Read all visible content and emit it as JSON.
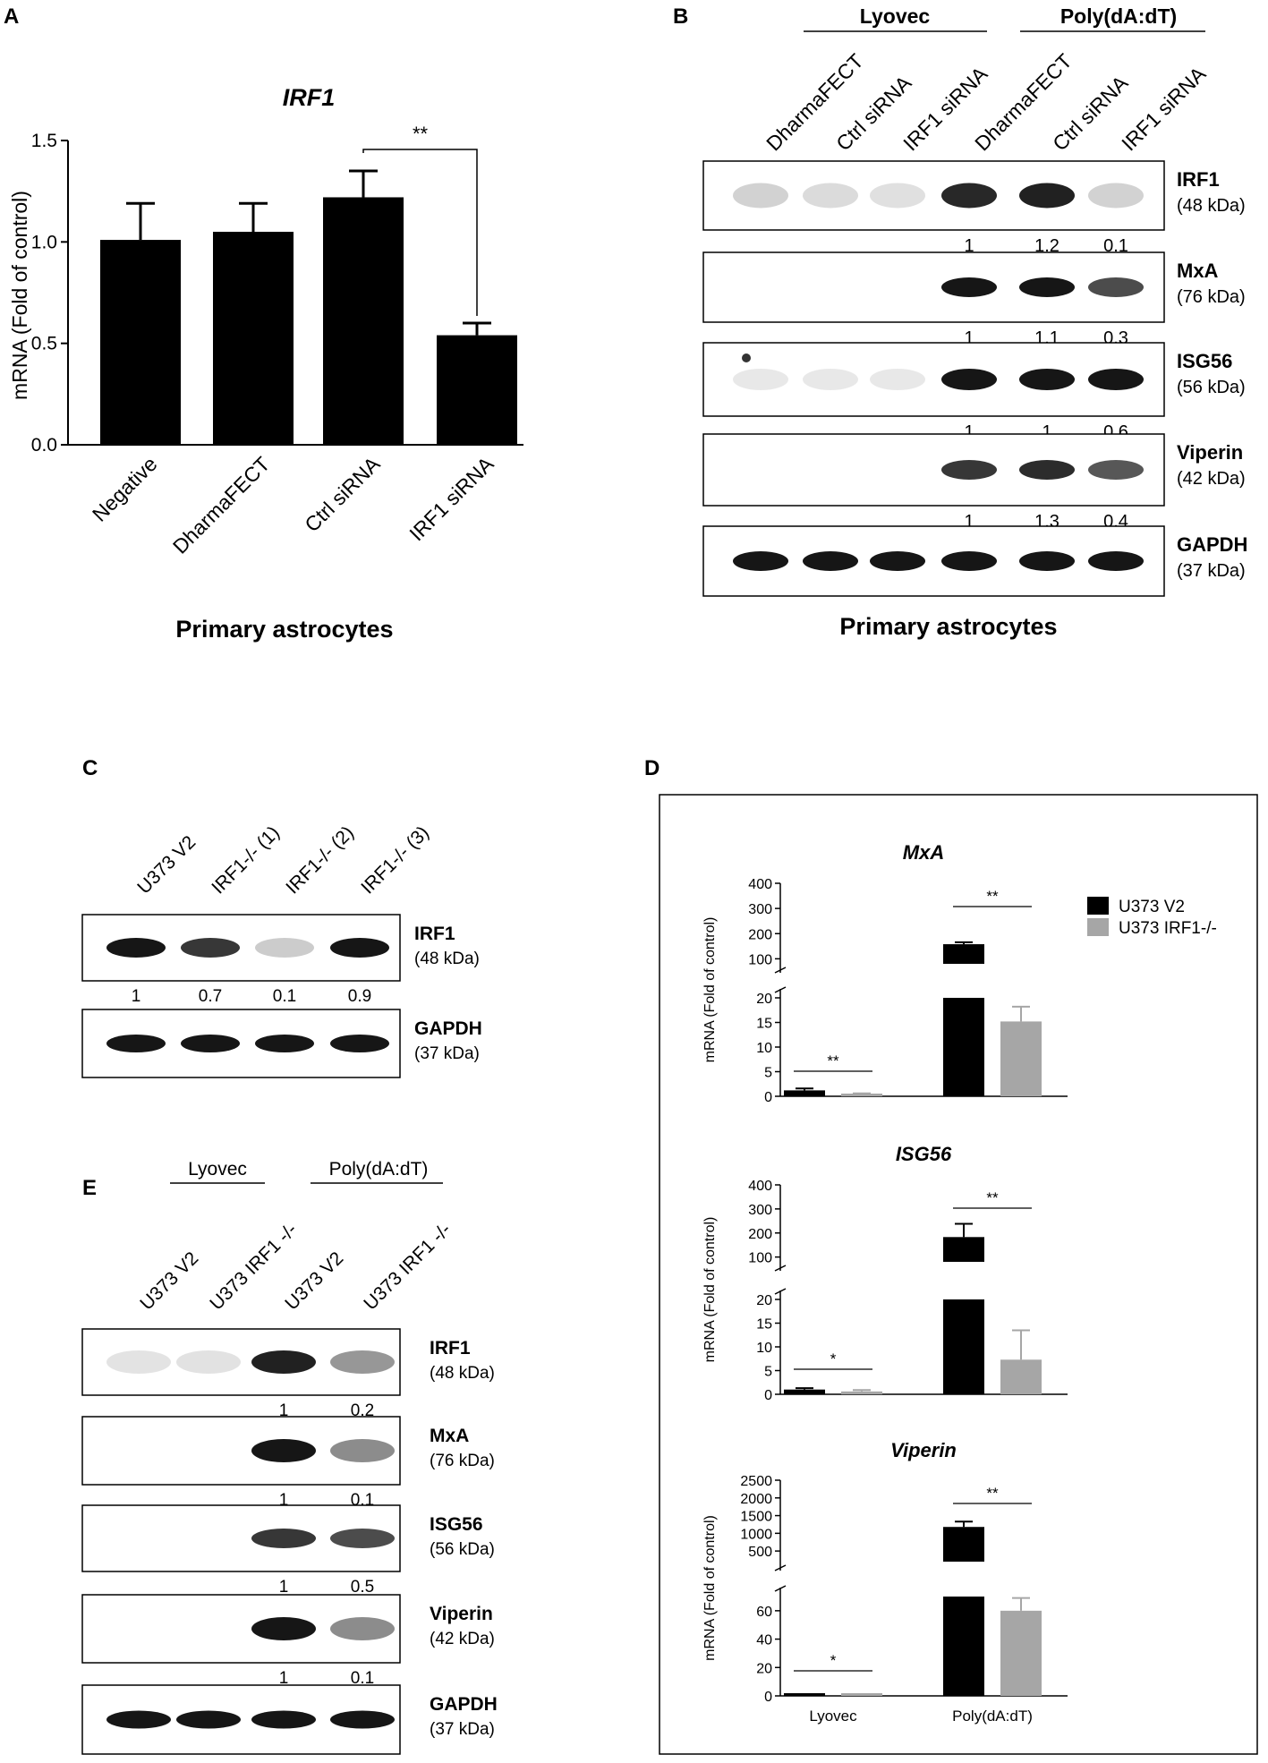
{
  "panel_a": {
    "letter": "A",
    "caption": "Primary astrocytes"
  },
  "panel_b": {
    "letter": "B",
    "group_labels": [
      "Lyovec",
      "Poly(dA:dT)"
    ],
    "lane_labels": [
      "DharmaFECT",
      "Ctrl siRNA",
      "IRF1 siRNA",
      "DharmaFECT",
      "Ctrl siRNA",
      "IRF1 siRNA"
    ],
    "blots": [
      {
        "protein": "IRF1",
        "kda": "(48 kDa)",
        "quant": [
          "1",
          "1.2",
          "0.1"
        ],
        "intensity": [
          0.12,
          0.08,
          0.06,
          0.92,
          0.95,
          0.12
        ]
      },
      {
        "protein": "MxA",
        "kda": "(76 kDa)",
        "quant": [
          "1",
          "1.1",
          "0.3"
        ],
        "intensity": [
          0,
          0,
          0,
          1,
          1,
          0.75
        ]
      },
      {
        "protein": "ISG56",
        "kda": "(56 kDa)",
        "quant": [
          "1",
          "1",
          "0.6"
        ],
        "intensity": [
          0.02,
          0.02,
          0.02,
          1,
          1,
          1
        ]
      },
      {
        "protein": "Viperin",
        "kda": "(42 kDa)",
        "quant": [
          "1",
          "1.3",
          "0.4"
        ],
        "intensity": [
          0,
          0,
          0,
          0.85,
          0.9,
          0.7
        ]
      },
      {
        "protein": "GAPDH",
        "kda": "(37 kDa)",
        "quant": [],
        "intensity": [
          1,
          1,
          1,
          1,
          1,
          1
        ]
      }
    ],
    "caption": "Primary astrocytes"
  },
  "panel_c": {
    "letter": "C",
    "lane_labels": [
      "U373 V2",
      "IRF1-/- (1)",
      "IRF1-/- (2)",
      "IRF1-/- (3)"
    ],
    "blots": [
      {
        "protein": "IRF1",
        "kda": "(48 kDa)",
        "quant": [
          "1",
          "0.7",
          "0.1",
          "0.9"
        ],
        "intensity": [
          1,
          0.85,
          0.15,
          1
        ]
      },
      {
        "protein": "GAPDH",
        "kda": "(37 kDa)",
        "quant": [],
        "intensity": [
          1,
          1,
          1,
          1
        ]
      }
    ]
  },
  "panel_d": {
    "letter": "D",
    "legend": [
      {
        "name": "U373 V2",
        "color": "#000000"
      },
      {
        "name": "U373 IRF1-/-",
        "color": "#a6a6a6"
      }
    ],
    "ylabel": "mRNA (Fold of control)",
    "categories": [
      "Lyovec",
      "Poly(dA:dT)"
    ]
  },
  "panel_e": {
    "letter": "E",
    "group_labels": [
      "Lyovec",
      "Poly(dA:dT)"
    ],
    "lane_labels": [
      "U373 V2",
      "U373 IRF1 -/-",
      "U373 V2",
      "U373 IRF1 -/-"
    ],
    "blots": [
      {
        "protein": "IRF1",
        "kda": "(48 kDa)",
        "quant": [
          "1",
          "0.2"
        ],
        "intensity": [
          0.04,
          0.05,
          0.95,
          0.4
        ]
      },
      {
        "protein": "MxA",
        "kda": "(76 kDa)",
        "quant": [
          "1",
          "0.1"
        ],
        "intensity": [
          0,
          0,
          1,
          0.45
        ]
      },
      {
        "protein": "ISG56",
        "kda": "(56 kDa)",
        "quant": [
          "1",
          "0.5"
        ],
        "intensity": [
          0,
          0,
          0.85,
          0.75
        ]
      },
      {
        "protein": "Viperin",
        "kda": "(42 kDa)",
        "quant": [
          "1",
          "0.1"
        ],
        "intensity": [
          0,
          0,
          1,
          0.45
        ]
      },
      {
        "protein": "GAPDH",
        "kda": "(37 kDa)",
        "quant": [],
        "intensity": [
          1,
          1,
          1,
          1
        ]
      }
    ]
  },
  "chart_data": [
    {
      "type": "bar",
      "title": "IRF1",
      "ylabel": "mRNA (Fold of control)",
      "xlabel": "",
      "categories": [
        "Negative",
        "DharmaFECT",
        "Ctrl siRNA",
        "IRF1 siRNA"
      ],
      "values": [
        1.01,
        1.05,
        1.22,
        0.54
      ],
      "errors": [
        0.18,
        0.14,
        0.13,
        0.06
      ],
      "ylim": [
        0,
        1.5
      ],
      "yticks": [
        "0.0",
        "0.5",
        "1.0",
        "1.5"
      ],
      "significance": [
        {
          "from": "Ctrl siRNA",
          "to": "IRF1 siRNA",
          "label": "**"
        }
      ]
    },
    {
      "type": "bar",
      "title": "MxA",
      "ylabel": "mRNA (Fold of control)",
      "categories": [
        "Lyovec",
        "Poly(dA:dT)"
      ],
      "series": [
        {
          "name": "U373 V2",
          "values": [
            1.2,
            158
          ],
          "errors": [
            0.4,
            8
          ]
        },
        {
          "name": "U373 IRF1-/-",
          "values": [
            0.5,
            15.2
          ],
          "errors": [
            0.1,
            3.0
          ]
        }
      ],
      "axis_break": {
        "lower": [
          0,
          20
        ],
        "upper": [
          0,
          400
        ]
      },
      "yticks_lower": [
        "0",
        "5",
        "10",
        "15",
        "20"
      ],
      "yticks_upper": [
        "100",
        "200",
        "300",
        "400"
      ],
      "significance": [
        "**",
        "**"
      ]
    },
    {
      "type": "bar",
      "title": "ISG56",
      "ylabel": "mRNA (Fold of control)",
      "categories": [
        "Lyovec",
        "Poly(dA:dT)"
      ],
      "series": [
        {
          "name": "U373 V2",
          "values": [
            1.0,
            183
          ],
          "errors": [
            0.3,
            55
          ]
        },
        {
          "name": "U373 IRF1-/-",
          "values": [
            0.6,
            7.3
          ],
          "errors": [
            0.3,
            6.2
          ]
        }
      ],
      "axis_break": {
        "lower": [
          0,
          20
        ],
        "upper": [
          0,
          400
        ]
      },
      "yticks_lower": [
        "0",
        "5",
        "10",
        "15",
        "20"
      ],
      "yticks_upper": [
        "100",
        "200",
        "300",
        "400"
      ],
      "significance": [
        "*",
        "**"
      ]
    },
    {
      "type": "bar",
      "title": "Viperin",
      "ylabel": "mRNA (Fold of control)",
      "categories": [
        "Lyovec",
        "Poly(dA:dT)"
      ],
      "series": [
        {
          "name": "U373 V2",
          "values": [
            1.0,
            1180
          ],
          "errors": [
            0.3,
            150
          ]
        },
        {
          "name": "U373 IRF1-/-",
          "values": [
            0.6,
            60
          ],
          "errors": [
            0.3,
            9
          ]
        }
      ],
      "axis_break": {
        "lower": [
          0,
          70
        ],
        "upper": [
          0,
          2500
        ]
      },
      "yticks_lower": [
        "0",
        "20",
        "40",
        "60"
      ],
      "yticks_upper": [
        "500",
        "1000",
        "1500",
        "2000",
        "2500"
      ],
      "significance": [
        "*",
        "**"
      ]
    }
  ]
}
